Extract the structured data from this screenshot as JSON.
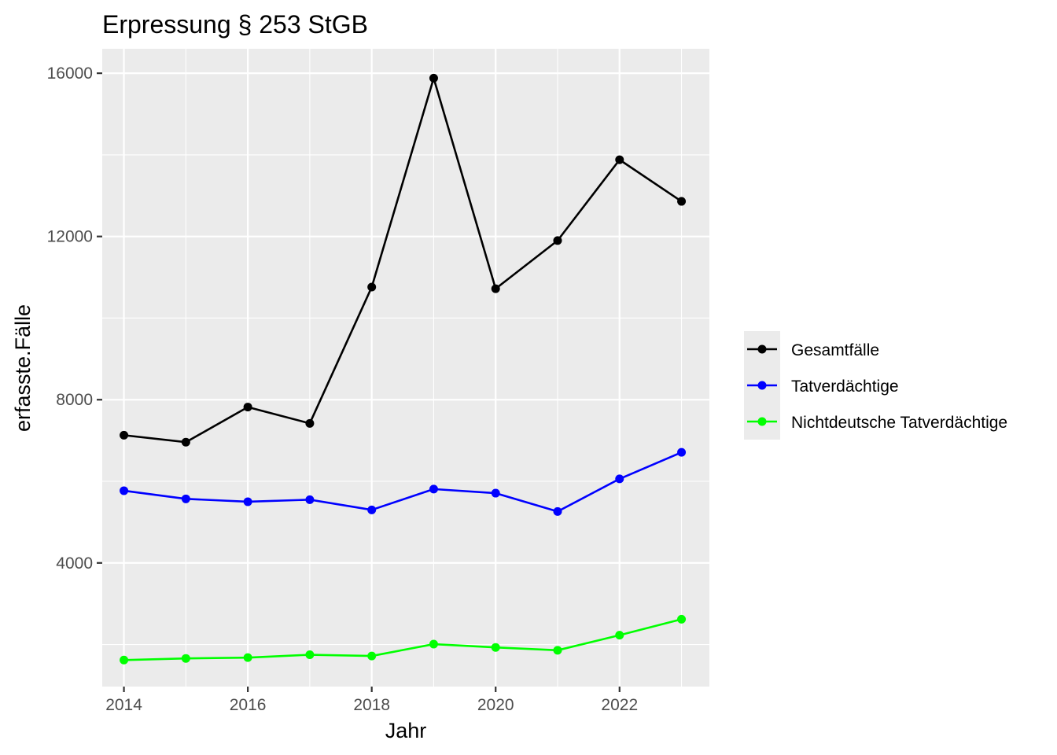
{
  "chart_data": {
    "type": "line",
    "title": "Erpressung § 253 StGB",
    "xlabel": "Jahr",
    "ylabel": "erfasste.Fälle",
    "x": [
      2014,
      2015,
      2016,
      2017,
      2018,
      2019,
      2020,
      2021,
      2022,
      2023
    ],
    "xlim": [
      2013.65,
      2023.45
    ],
    "ylim": [
      970,
      16600
    ],
    "x_ticks": [
      2014,
      2016,
      2018,
      2020,
      2022
    ],
    "y_ticks": [
      4000,
      8000,
      12000,
      16000
    ],
    "grid": true,
    "legend_position": "right",
    "series": [
      {
        "name": "Gesamtfälle",
        "color": "#000000",
        "values": [
          7130,
          6960,
          7820,
          7420,
          10760,
          15880,
          10720,
          11900,
          13880,
          12860
        ]
      },
      {
        "name": "Tatverdächtige",
        "color": "#0000ff",
        "values": [
          5770,
          5570,
          5500,
          5550,
          5300,
          5810,
          5710,
          5260,
          6060,
          6710
        ]
      },
      {
        "name": "Nichtdeutsche Tatverdächtige",
        "color": "#00ff00",
        "values": [
          1620,
          1660,
          1680,
          1750,
          1720,
          2010,
          1930,
          1860,
          2230,
          2620
        ]
      }
    ]
  }
}
